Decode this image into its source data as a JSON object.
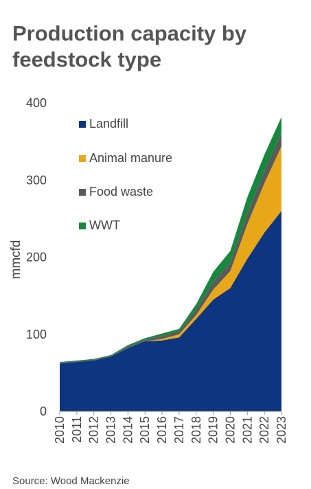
{
  "title": "Production capacity by feedstock type",
  "source": "Source: Wood Mackenzie",
  "chart_data": {
    "type": "area",
    "stacked": true,
    "title": "Production capacity by feedstock type",
    "xlabel": "",
    "ylabel": "mmcfd",
    "ylim": [
      0,
      400
    ],
    "yticks": [
      0,
      100,
      200,
      300,
      400
    ],
    "grid": false,
    "legend_position": "top-left",
    "x": [
      "2010",
      "2011",
      "2012",
      "2013",
      "2014",
      "2015",
      "2016",
      "2017",
      "2018",
      "2019",
      "2020",
      "2021",
      "2022",
      "2023"
    ],
    "series": [
      {
        "name": "Landfill",
        "color": "#0d3580",
        "values": [
          62,
          64,
          66,
          71,
          82,
          91,
          92,
          96,
          120,
          145,
          160,
          198,
          232,
          260
        ]
      },
      {
        "name": "Animal manure",
        "color": "#e8a719",
        "values": [
          0,
          0,
          0,
          0,
          0,
          0,
          2,
          4,
          5,
          13,
          22,
          45,
          64,
          84
        ]
      },
      {
        "name": "Food waste",
        "color": "#5a5a5a",
        "values": [
          1,
          1,
          1,
          1,
          2,
          2,
          4,
          4,
          7,
          10,
          11,
          14,
          16,
          17
        ]
      },
      {
        "name": "WWT",
        "color": "#17873d",
        "values": [
          1,
          1,
          1,
          1,
          2,
          2,
          3,
          3,
          7,
          13,
          15,
          21,
          21,
          21
        ]
      }
    ]
  }
}
